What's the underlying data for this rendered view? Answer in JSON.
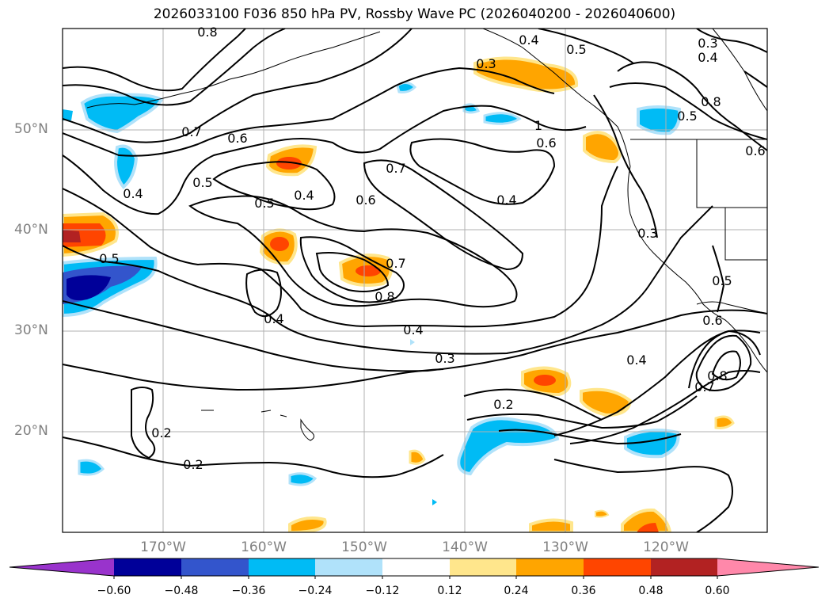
{
  "title": "2026033100 F036 850 hPa PV, Rossby Wave PC (2026040200 - 2026040600)",
  "map": {
    "lat_labels": [
      "50°N",
      "40°N",
      "30°N",
      "20°N"
    ],
    "lon_labels": [
      "170°W",
      "160°W",
      "150°W",
      "140°W",
      "130°W",
      "120°W"
    ],
    "contour_labels": [
      "0.8",
      "0.4",
      "0.5",
      "0.3",
      "0.4",
      "0.3",
      "0.8",
      "0.5",
      "0.7",
      "0.6",
      "0.5",
      "1",
      "0.6",
      "0.6",
      "0.4",
      "0.5",
      "0.4",
      "0.5",
      "0.7",
      "0.6",
      "0.4",
      "0.3",
      "0.5",
      "0.7",
      "0.8",
      "0.4",
      "0.4",
      "0.3",
      "0.4",
      "0.8",
      "0.7",
      "0.2",
      "0.2",
      "0.2",
      "0.6"
    ]
  },
  "colorbar": {
    "ticks": [
      "−0.60",
      "−0.48",
      "−0.36",
      "−0.24",
      "−0.12",
      "0.12",
      "0.24",
      "0.36",
      "0.48",
      "0.60"
    ],
    "colors": [
      "#9933cc",
      "#000099",
      "#3355cc",
      "#00bbf5",
      "#b0e2fa",
      "#ffffff",
      "#ffe68c",
      "#ffa500",
      "#ff4500",
      "#b22222",
      "#ff88aa"
    ]
  }
}
